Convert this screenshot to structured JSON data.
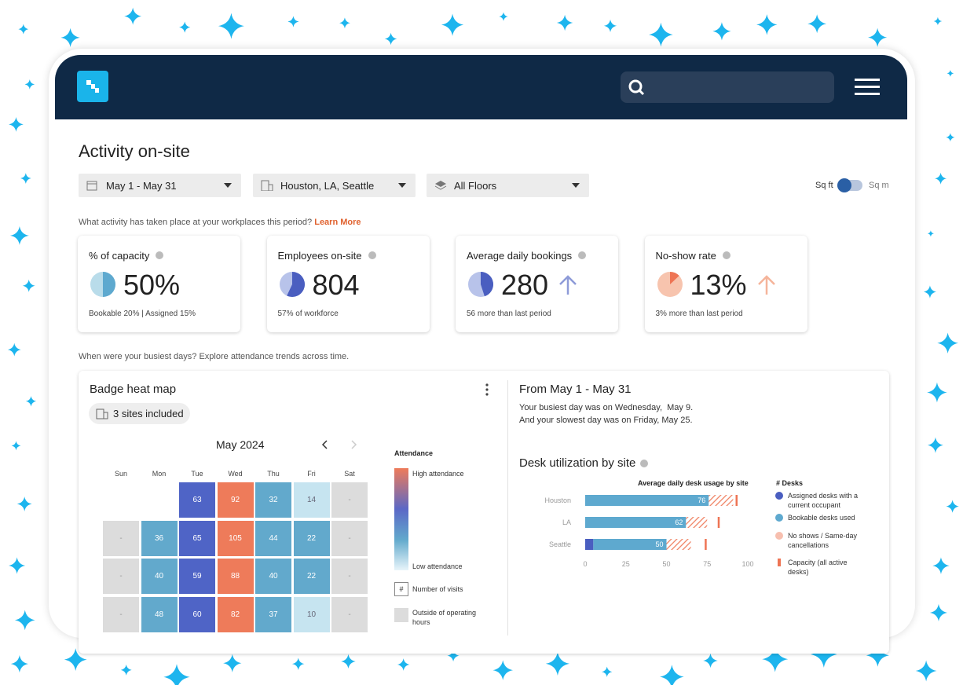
{
  "header": {
    "title": "Activity on-site"
  },
  "filters": {
    "date_range": "May 1 - May 31",
    "sites": "Houston, LA, Seattle",
    "floors": "All Floors",
    "unit_left": "Sq ft",
    "unit_right": "Sq m"
  },
  "intro": {
    "question": "What activity has taken place at your workplaces this period?",
    "link": "Learn More"
  },
  "kpis": [
    {
      "label": "% of capacity",
      "value": "50%",
      "note": "Bookable 20% | Assigned 15%"
    },
    {
      "label": "Employees on-site",
      "value": "804",
      "note": "57% of workforce"
    },
    {
      "label": "Average daily bookings",
      "value": "280",
      "note": "56 more than last period"
    },
    {
      "label": "No-show rate",
      "value": "13%",
      "note": "3% more than last period"
    }
  ],
  "trends_intro": "When were your busiest days? Explore attendance trends across time.",
  "heatmap": {
    "title": "Badge heat map",
    "sites_chip": "3 sites included",
    "month": "May 2024",
    "weekdays": [
      "Sun",
      "Mon",
      "Tue",
      "Wed",
      "Thu",
      "Fri",
      "Sat"
    ],
    "weeks": [
      [
        null,
        null,
        63,
        92,
        32,
        14,
        "-"
      ],
      [
        "-",
        36,
        65,
        105,
        44,
        22,
        "-"
      ],
      [
        "-",
        40,
        59,
        88,
        40,
        22,
        "-"
      ],
      [
        "-",
        48,
        60,
        82,
        37,
        10,
        "-"
      ]
    ],
    "legend": {
      "title": "Attendance",
      "high": "High attendance",
      "low": "Low attendance",
      "count_symbol": "#",
      "count": "Number of visits",
      "closed": "Outside of operating hours"
    }
  },
  "summary": {
    "title": "From May 1 - May 31",
    "busiest": "Your busiest day was on Wednesday,  May 9.",
    "slowest": "And your slowest day was on Friday, May 25."
  },
  "desk_chart": {
    "type": "bar",
    "title": "Desk utilization by site",
    "subtitle": "Average daily desk usage by site",
    "legend_title": "# Desks",
    "categories": [
      "Houston",
      "LA",
      "Seattle"
    ],
    "series": [
      {
        "name": "Assigned desks with a current occupant",
        "color": "#4a5ec0",
        "values": [
          0,
          0,
          5
        ]
      },
      {
        "name": "Bookable desks used",
        "color": "#5ea9cf",
        "values": [
          76,
          62,
          45
        ]
      },
      {
        "name": "No shows / Same-day cancellations",
        "color": "#ef7f5f",
        "values": [
          15,
          13,
          15
        ]
      },
      {
        "name": "Capacity (all active desks)",
        "color": "#ee7454",
        "values": [
          93,
          82,
          74
        ]
      }
    ],
    "total_labels": [
      "76",
      "62",
      "50"
    ],
    "xlim": [
      0,
      100
    ],
    "xticks": [
      0,
      25,
      50,
      75,
      100
    ]
  }
}
